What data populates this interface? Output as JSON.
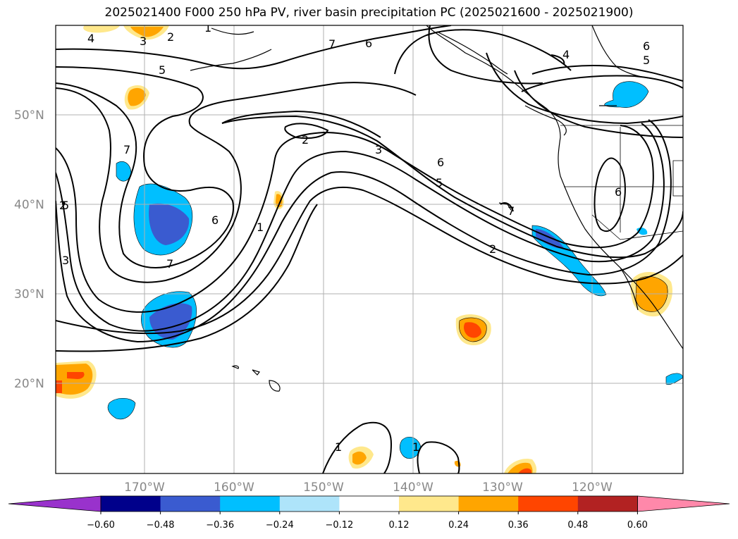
{
  "title": "2025021400 F000 250 hPa PV, river basin precipitation PC (2025021600 - 2025021900)",
  "lat_labels": [
    "50°N",
    "40°N",
    "30°N",
    "20°N"
  ],
  "lon_labels": [
    "170°W",
    "160°W",
    "150°W",
    "140°W",
    "130°W",
    "120°W"
  ],
  "colorbar": {
    "ticks": [
      "−0.60",
      "−0.48",
      "−0.36",
      "−0.24",
      "−0.12",
      "0.12",
      "0.24",
      "0.36",
      "0.48",
      "0.60"
    ],
    "colors": [
      "#9932cc",
      "#00008b",
      "#3a5bd0",
      "#00bfff",
      "#aee4fa",
      "#ffffff",
      "#ffe88c",
      "#ffa500",
      "#ff4500",
      "#b22222",
      "#ff88aa"
    ]
  },
  "contour_labels": [
    "4",
    "3",
    "2",
    "1",
    "7",
    "6",
    "5",
    "4",
    "6",
    "5",
    "5",
    "7",
    "2",
    "3",
    "6",
    "5",
    "2",
    "7",
    "6",
    "1",
    "2",
    "3",
    "7",
    "6",
    "1",
    "1"
  ]
}
